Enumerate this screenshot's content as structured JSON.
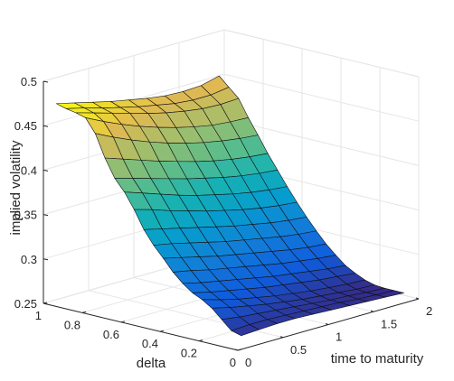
{
  "chart_data": {
    "type": "surface",
    "title": "",
    "xlabel": "delta",
    "ylabel": "time to maturity",
    "zlabel": "implied volatility",
    "xlim": [
      0,
      1
    ],
    "ylim": [
      0,
      2
    ],
    "zlim": [
      0.25,
      0.5
    ],
    "x_ticks": [
      "0",
      "0.2",
      "0.4",
      "0.6",
      "0.8",
      "1"
    ],
    "y_ticks": [
      "0",
      "0.5",
      "1",
      "1.5",
      "2"
    ],
    "z_ticks": [
      "0.25",
      "0.3",
      "0.35",
      "0.4",
      "0.45",
      "0.5"
    ],
    "grid": true,
    "colormap": "parula",
    "delta": [
      0.98,
      0.93,
      0.88,
      0.83,
      0.78,
      0.73,
      0.68,
      0.63,
      0.58,
      0.53,
      0.48,
      0.43,
      0.38,
      0.33,
      0.28,
      0.23,
      0.18,
      0.13,
      0.08,
      0.03
    ],
    "time_to_maturity": [
      0.1,
      0.3,
      0.5,
      0.7,
      0.9,
      1.1,
      1.3,
      1.5,
      1.7,
      1.9
    ],
    "implied_volatility": [
      [
        0.473,
        0.468,
        0.463,
        0.458,
        0.454,
        0.45,
        0.447,
        0.446,
        0.447,
        0.452
      ],
      [
        0.47,
        0.465,
        0.459,
        0.454,
        0.449,
        0.445,
        0.441,
        0.439,
        0.439,
        0.442
      ],
      [
        0.468,
        0.462,
        0.456,
        0.45,
        0.444,
        0.439,
        0.435,
        0.432,
        0.431,
        0.432
      ],
      [
        0.465,
        0.455,
        0.446,
        0.438,
        0.431,
        0.425,
        0.42,
        0.416,
        0.414,
        0.413
      ],
      [
        0.45,
        0.44,
        0.431,
        0.423,
        0.416,
        0.41,
        0.405,
        0.401,
        0.398,
        0.396
      ],
      [
        0.425,
        0.418,
        0.411,
        0.404,
        0.398,
        0.392,
        0.387,
        0.383,
        0.38,
        0.378
      ],
      [
        0.405,
        0.399,
        0.393,
        0.387,
        0.381,
        0.376,
        0.371,
        0.367,
        0.364,
        0.362
      ],
      [
        0.392,
        0.385,
        0.378,
        0.371,
        0.365,
        0.36,
        0.355,
        0.351,
        0.348,
        0.346
      ],
      [
        0.375,
        0.369,
        0.362,
        0.356,
        0.35,
        0.345,
        0.34,
        0.336,
        0.333,
        0.331
      ],
      [
        0.355,
        0.35,
        0.345,
        0.34,
        0.335,
        0.33,
        0.326,
        0.322,
        0.319,
        0.317
      ],
      [
        0.34,
        0.336,
        0.331,
        0.326,
        0.321,
        0.317,
        0.313,
        0.309,
        0.306,
        0.304
      ],
      [
        0.328,
        0.323,
        0.318,
        0.313,
        0.309,
        0.305,
        0.301,
        0.297,
        0.294,
        0.292
      ],
      [
        0.315,
        0.311,
        0.306,
        0.302,
        0.298,
        0.294,
        0.29,
        0.287,
        0.284,
        0.282
      ],
      [
        0.305,
        0.3,
        0.296,
        0.292,
        0.288,
        0.284,
        0.281,
        0.278,
        0.275,
        0.273
      ],
      [
        0.297,
        0.292,
        0.288,
        0.284,
        0.28,
        0.277,
        0.274,
        0.271,
        0.269,
        0.267
      ],
      [
        0.292,
        0.286,
        0.281,
        0.277,
        0.273,
        0.27,
        0.267,
        0.265,
        0.263,
        0.262
      ],
      [
        0.285,
        0.28,
        0.276,
        0.272,
        0.269,
        0.266,
        0.264,
        0.262,
        0.26,
        0.259
      ],
      [
        0.275,
        0.272,
        0.27,
        0.268,
        0.266,
        0.264,
        0.262,
        0.261,
        0.259,
        0.258
      ],
      [
        0.265,
        0.266,
        0.266,
        0.265,
        0.264,
        0.263,
        0.262,
        0.26,
        0.259,
        0.258
      ],
      [
        0.262,
        0.263,
        0.264,
        0.264,
        0.263,
        0.262,
        0.261,
        0.26,
        0.259,
        0.258
      ]
    ]
  }
}
